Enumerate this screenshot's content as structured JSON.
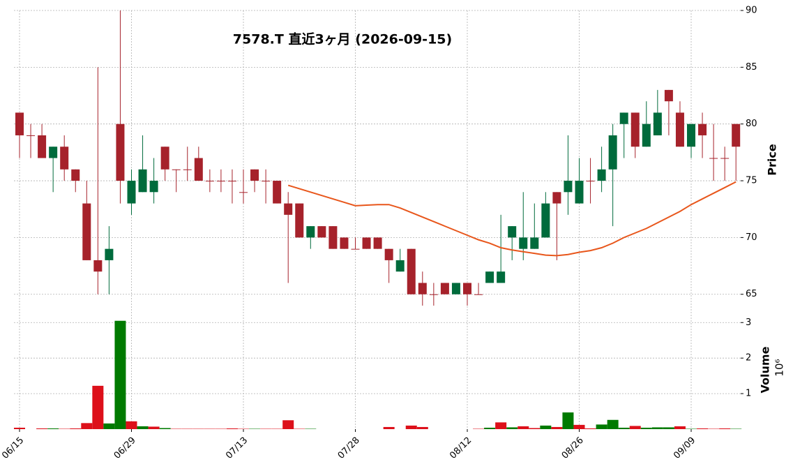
{
  "chart_data": {
    "type": "candlestick",
    "title": "7578.T  直近3ヶ月  (2026-09-15)",
    "y_label": "Price",
    "y2_label": "Volume",
    "y2_multiplier": "10⁶",
    "categories": [
      "06/15",
      null,
      null,
      null,
      null,
      null,
      null,
      null,
      null,
      null,
      "06/29",
      null,
      null,
      null,
      null,
      null,
      null,
      null,
      null,
      null,
      "07/13",
      null,
      null,
      null,
      null,
      null,
      null,
      null,
      null,
      null,
      "07/28",
      null,
      null,
      null,
      null,
      null,
      null,
      null,
      null,
      null,
      "08/12",
      null,
      null,
      null,
      null,
      null,
      null,
      null,
      null,
      null,
      "08/26",
      null,
      null,
      null,
      null,
      null,
      null,
      null,
      null,
      null,
      "09/09",
      null,
      null,
      null,
      null
    ],
    "open": [
      81,
      79,
      79,
      77,
      78,
      76,
      73,
      68,
      68,
      80,
      73,
      74,
      74,
      78,
      76,
      76,
      77,
      75,
      75,
      75,
      74,
      76,
      75,
      75,
      73,
      73,
      70,
      71,
      71,
      70,
      69,
      70,
      70,
      69,
      67,
      69,
      66,
      65,
      66,
      65,
      66,
      65,
      66,
      66,
      70,
      69,
      69,
      70,
      74,
      74,
      73,
      75,
      75,
      76,
      80,
      81,
      78,
      79,
      83,
      81,
      78,
      80,
      77,
      77,
      80
    ],
    "high": [
      81,
      80,
      80,
      78,
      79,
      76,
      75,
      85,
      71,
      90,
      76,
      79,
      77,
      78,
      76,
      78,
      78,
      76,
      76,
      76,
      76,
      76,
      76,
      75,
      74,
      73,
      71,
      71,
      71,
      70,
      70,
      70,
      70,
      69,
      69,
      69,
      67,
      66,
      66,
      66,
      66,
      66,
      67,
      72,
      71,
      74,
      73,
      74,
      74,
      79,
      77,
      77,
      78,
      80,
      81,
      81,
      82,
      83,
      83,
      82,
      80,
      81,
      80,
      78,
      80
    ],
    "low": [
      77,
      77,
      77,
      74,
      75,
      74,
      68,
      65,
      65,
      73,
      72,
      74,
      73,
      75,
      74,
      75,
      75,
      74,
      74,
      73,
      73,
      74,
      73,
      73,
      66,
      70,
      69,
      70,
      69,
      69,
      69,
      69,
      69,
      66,
      67,
      65,
      64,
      64,
      65,
      65,
      64,
      65,
      66,
      66,
      68,
      68,
      69,
      70,
      68,
      72,
      73,
      73,
      74,
      71,
      77,
      77,
      78,
      79,
      79,
      78,
      77,
      77,
      75,
      75,
      75
    ],
    "close": [
      79,
      79,
      77,
      78,
      76,
      75,
      68,
      67,
      69,
      75,
      75,
      76,
      75,
      76,
      76,
      76,
      75,
      75,
      75,
      75,
      74,
      75,
      75,
      73,
      72,
      70,
      71,
      70,
      69,
      69,
      69,
      69,
      69,
      68,
      68,
      65,
      65,
      65,
      65,
      66,
      65,
      65,
      67,
      67,
      71,
      70,
      70,
      73,
      73,
      75,
      75,
      75,
      76,
      79,
      81,
      78,
      80,
      81,
      82,
      78,
      80,
      79,
      77,
      77,
      78
    ],
    "volume": [
      0.04,
      0,
      0.02,
      0.02,
      0.01,
      0.02,
      0.17,
      1.22,
      0.16,
      3.05,
      0.22,
      0.08,
      0.07,
      0.03,
      0.01,
      0.01,
      0.01,
      0.01,
      0.01,
      0.02,
      0.01,
      0.01,
      0.01,
      0.01,
      0.25,
      0.01,
      0.01,
      0,
      0,
      0,
      0,
      0,
      0,
      0.06,
      0,
      0.1,
      0.06,
      0,
      0,
      0,
      0,
      0.01,
      0.04,
      0.19,
      0.05,
      0.08,
      0.03,
      0.1,
      0.06,
      0.47,
      0.12,
      0.02,
      0.13,
      0.26,
      0.04,
      0.09,
      0.04,
      0.05,
      0.05,
      0.08,
      0.01,
      0.02,
      0.01,
      0.02,
      0.01
    ],
    "ma": [
      null,
      null,
      null,
      null,
      null,
      null,
      null,
      null,
      null,
      null,
      null,
      null,
      null,
      null,
      null,
      null,
      null,
      null,
      null,
      null,
      null,
      null,
      null,
      null,
      74.6,
      74.3,
      74.0,
      73.7,
      73.4,
      73.1,
      72.8,
      72.85,
      72.9,
      72.9,
      72.6,
      72.2,
      71.8,
      71.4,
      71.0,
      70.6,
      70.2,
      69.8,
      69.5,
      69.1,
      68.9,
      68.75,
      68.6,
      68.45,
      68.4,
      68.5,
      68.7,
      68.85,
      69.1,
      69.5,
      70.0,
      70.4,
      70.8,
      71.3,
      71.8,
      72.3,
      72.9,
      73.4,
      73.9,
      74.4,
      74.9
    ],
    "up_color": "#006b3c",
    "down_color": "#a6222b",
    "volume_up_color": "#007a00",
    "volume_down_color": "#dd101a",
    "ma_color": "#e8561b",
    "ylim": [
      64,
      90
    ],
    "yticks": [
      65,
      70,
      75,
      80,
      85,
      90
    ],
    "y2lim": [
      0,
      3.3
    ],
    "y2ticks": [
      1,
      2,
      3
    ],
    "grid": true
  }
}
